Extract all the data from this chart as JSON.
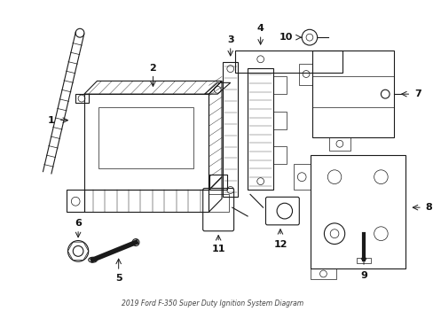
{
  "title": "2019 Ford F-350 Super Duty Ignition System Diagram",
  "background_color": "#ffffff",
  "line_color": "#1a1a1a",
  "label_color": "#111111",
  "fig_w": 4.89,
  "fig_h": 3.6,
  "dpi": 100
}
